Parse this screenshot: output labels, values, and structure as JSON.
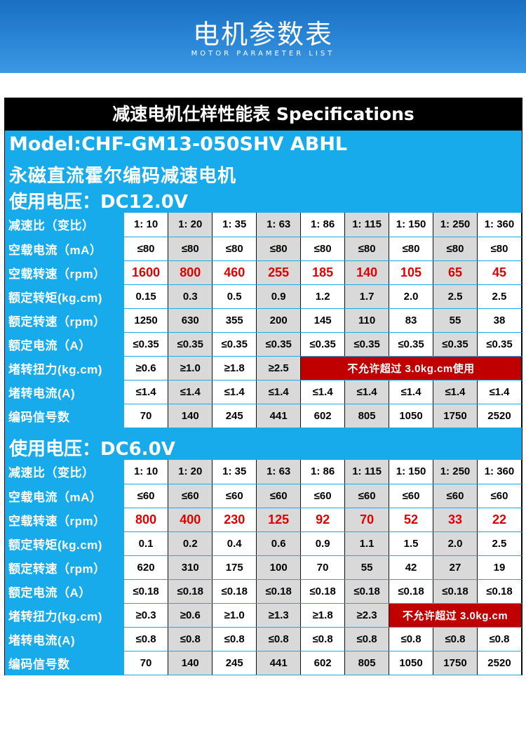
{
  "banner": {
    "title": "电机参数表",
    "subtitle": "MOTOR PARAMETER LIST"
  },
  "spec": {
    "header": "减速电机仕样性能表 Specifications",
    "model": "Model:CHF-GM13-050SHV ABHL",
    "name": "永磁直流霍尔编码减速电机",
    "sections": [
      {
        "voltage": "使用电压：DC12.0V",
        "rows": [
          {
            "label": "减速比（变比）",
            "values": [
              "1: 10",
              "1: 20",
              "1: 35",
              "1: 63",
              "1: 86",
              "1: 115",
              "1: 150",
              "1: 250",
              "1: 360"
            ]
          },
          {
            "label": "空载电流（mA）",
            "values": [
              "≤80",
              "≤80",
              "≤80",
              "≤80",
              "≤80",
              "≤80",
              "≤80",
              "≤80",
              "≤80"
            ]
          },
          {
            "label": "空载转速（rpm）",
            "values": [
              "1600",
              "800",
              "460",
              "255",
              "185",
              "140",
              "105",
              "65",
              "45"
            ]
          },
          {
            "label": "额定转矩(kg.cm)",
            "values": [
              "0.15",
              "0.3",
              "0.5",
              "0.9",
              "1.2",
              "1.7",
              "2.0",
              "2.5",
              "2.5"
            ]
          },
          {
            "label": "额定转速（rpm）",
            "values": [
              "1250",
              "630",
              "355",
              "200",
              "145",
              "110",
              "83",
              "55",
              "38"
            ]
          },
          {
            "label": "额定电流（A）",
            "values": [
              "≤0.35",
              "≤0.35",
              "≤0.35",
              "≤0.35",
              "≤0.35",
              "≤0.35",
              "≤0.35",
              "≤0.35",
              "≤0.35"
            ]
          },
          {
            "label": "堵转扭力(kg.cm)",
            "values": [
              "≥0.6",
              "≥1.0",
              "≥1.8",
              "≥2.5"
            ],
            "warning": "不允许超过 3.0kg.cm使用"
          },
          {
            "label": "堵转电流(A)",
            "values": [
              "≤1.4",
              "≤1.4",
              "≤1.4",
              "≤1.4",
              "≤1.4",
              "≤1.4",
              "≤1.4",
              "≤1.4",
              "≤1.4"
            ]
          },
          {
            "label": "编码信号数",
            "values": [
              "70",
              "140",
              "245",
              "441",
              "602",
              "805",
              "1050",
              "1750",
              "2520"
            ]
          }
        ]
      },
      {
        "voltage": "使用电压：DC6.0V",
        "rows": [
          {
            "label": "减速比（变比）",
            "values": [
              "1: 10",
              "1: 20",
              "1: 35",
              "1: 63",
              "1: 86",
              "1: 115",
              "1: 150",
              "1: 250",
              "1: 360"
            ]
          },
          {
            "label": "空载电流（mA）",
            "values": [
              "≤60",
              "≤60",
              "≤60",
              "≤60",
              "≤60",
              "≤60",
              "≤60",
              "≤60",
              "≤60"
            ]
          },
          {
            "label": "空载转速（rpm）",
            "values": [
              "800",
              "400",
              "230",
              "125",
              "92",
              "70",
              "52",
              "33",
              "22"
            ]
          },
          {
            "label": "额定转矩(kg.cm)",
            "values": [
              "0.1",
              "0.2",
              "0.4",
              "0.6",
              "0.9",
              "1.1",
              "1.5",
              "2.0",
              "2.5"
            ]
          },
          {
            "label": "额定转速（rpm）",
            "values": [
              "620",
              "310",
              "175",
              "100",
              "70",
              "55",
              "42",
              "27",
              "19"
            ]
          },
          {
            "label": "额定电流（A）",
            "values": [
              "≤0.18",
              "≤0.18",
              "≤0.18",
              "≤0.18",
              "≤0.18",
              "≤0.18",
              "≤0.18",
              "≤0.18",
              "≤0.18"
            ]
          },
          {
            "label": "堵转扭力(kg.cm)",
            "values": [
              "≥0.3",
              "≥0.6",
              "≥1.0",
              "≥1.3",
              "≥1.8",
              "≥2.3"
            ],
            "warning": "不允许超过 3.0kg.cm"
          },
          {
            "label": "堵转电流(A)",
            "values": [
              "≤0.8",
              "≤0.8",
              "≤0.8",
              "≤0.8",
              "≤0.8",
              "≤0.8",
              "≤0.8",
              "≤0.8",
              "≤0.8"
            ]
          },
          {
            "label": "编码信号数",
            "values": [
              "70",
              "140",
              "245",
              "441",
              "602",
              "805",
              "1050",
              "1750",
              "2520"
            ]
          }
        ]
      }
    ]
  },
  "colors": {
    "banner": "#2a86d6",
    "panel": "#17abeb",
    "header": "#000000",
    "highlight_text": "#e00000",
    "warning_bg": "#c00000",
    "alt_cell": "#d9d9d9"
  }
}
